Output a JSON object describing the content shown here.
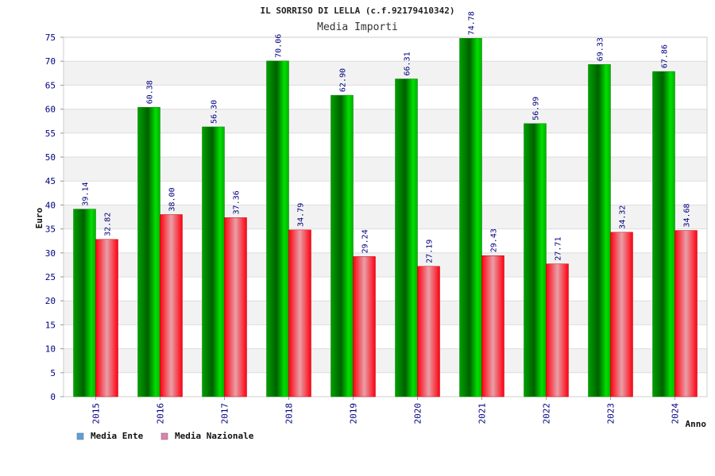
{
  "chart_data": {
    "type": "bar",
    "title": "IL SORRISO DI LELLA (c.f.92179410342)",
    "subtitle": "Media Importi",
    "xlabel": "Anno",
    "ylabel": "Euro",
    "ylim": [
      0,
      75
    ],
    "ytick_step": 5,
    "grid": true,
    "legend_position": "bottom-left",
    "categories": [
      "2015",
      "2016",
      "2017",
      "2018",
      "2019",
      "2020",
      "2021",
      "2022",
      "2023",
      "2024"
    ],
    "series": [
      {
        "name": "Media Ente",
        "values": [
          39.14,
          60.38,
          56.3,
          70.06,
          62.9,
          66.31,
          74.78,
          56.99,
          69.33,
          67.86
        ],
        "labels": [
          "39.14",
          "60.38",
          "56.30",
          "70.06",
          "62.90",
          "66.31",
          "74.78",
          "56.99",
          "69.33",
          "67.86"
        ],
        "bar_color": "#00c000",
        "legend_color": "#5aa0e0"
      },
      {
        "name": "Media Nazionale",
        "values": [
          32.82,
          38.0,
          37.36,
          34.79,
          29.24,
          27.19,
          29.43,
          27.71,
          34.32,
          34.68
        ],
        "labels": [
          "32.82",
          "38.00",
          "37.36",
          "34.79",
          "29.24",
          "27.19",
          "29.43",
          "27.71",
          "34.32",
          "34.68"
        ],
        "bar_color": "#e00010",
        "legend_color": "#e080b0"
      }
    ]
  }
}
